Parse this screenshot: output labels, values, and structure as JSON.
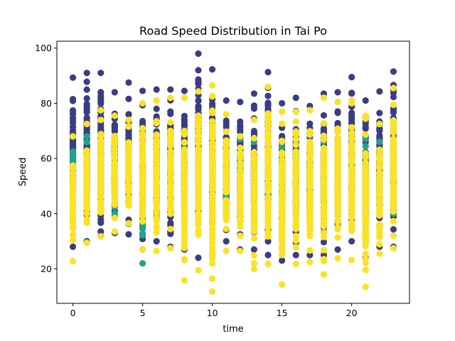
{
  "chart_data": {
    "type": "scatter",
    "title": "Road Speed Distribution in Tai Po",
    "xlabel": "time",
    "ylabel": "Speed",
    "xlim": [
      -1.15,
      24.15
    ],
    "ylim": [
      7.5,
      102.5
    ],
    "x_ticks": [
      0,
      5,
      10,
      15,
      20
    ],
    "y_ticks": [
      20,
      40,
      60,
      80,
      100
    ],
    "grid": false,
    "legend": "none",
    "colors": {
      "indigo": "#3b3d84",
      "teal": "#23a28a",
      "yellow": "#fbe225"
    },
    "series": [
      {
        "color": "#3b3d84",
        "ranges": [
          [
            0,
            28,
            89.3
          ],
          [
            1,
            30,
            91
          ],
          [
            2,
            32,
            91
          ],
          [
            3,
            33,
            84
          ],
          [
            4,
            32.5,
            87.5
          ],
          [
            5,
            27,
            84.5
          ],
          [
            6,
            30,
            85
          ],
          [
            7,
            28,
            85
          ],
          [
            8,
            27,
            84.5
          ],
          [
            9,
            24,
            98
          ],
          [
            10,
            25,
            92.3
          ],
          [
            11,
            30,
            81
          ],
          [
            12,
            27,
            80.5
          ],
          [
            13,
            27,
            83.5
          ],
          [
            14,
            25,
            91.3
          ],
          [
            15,
            23,
            80
          ],
          [
            16,
            25,
            82
          ],
          [
            17,
            25,
            79
          ],
          [
            18,
            25,
            83.5
          ],
          [
            19,
            27,
            84
          ],
          [
            20,
            30,
            89.5
          ],
          [
            21,
            24,
            81
          ],
          [
            22,
            28,
            84.3
          ],
          [
            23,
            28,
            91.5
          ]
        ]
      },
      {
        "color": "#23a28a",
        "ranges": [
          [
            0,
            42,
            68
          ],
          [
            1,
            42,
            68
          ],
          [
            2,
            42,
            69
          ],
          [
            3,
            40,
            67
          ],
          [
            4,
            44,
            71.5
          ],
          [
            5,
            22,
            62
          ],
          [
            6,
            40,
            64
          ],
          [
            7,
            42,
            65
          ],
          [
            8,
            40,
            66
          ],
          [
            9,
            40,
            66
          ],
          [
            10,
            40,
            67
          ],
          [
            11,
            40,
            65
          ],
          [
            12,
            40,
            67
          ],
          [
            13,
            40,
            66
          ],
          [
            14,
            40,
            65
          ],
          [
            15,
            40,
            64
          ],
          [
            16,
            40,
            66
          ],
          [
            17,
            40,
            65
          ],
          [
            18,
            40,
            66
          ],
          [
            19,
            40,
            66
          ],
          [
            20,
            40,
            66
          ],
          [
            21,
            40,
            67
          ],
          [
            22,
            40,
            66
          ],
          [
            23,
            40,
            70
          ]
        ]
      },
      {
        "color": "#fbe225",
        "ranges": [
          [
            0,
            22.8,
            68
          ],
          [
            1,
            29.5,
            72.5
          ],
          [
            2,
            31.8,
            77.5
          ],
          [
            3,
            33.5,
            75.5
          ],
          [
            4,
            36.5,
            74
          ],
          [
            5,
            27,
            80
          ],
          [
            6,
            26.5,
            81
          ],
          [
            7,
            27.5,
            82
          ],
          [
            8,
            15.8,
            82
          ],
          [
            9,
            19.5,
            84.3
          ],
          [
            10,
            11.8,
            86.5
          ],
          [
            11,
            26.5,
            76
          ],
          [
            12,
            26.5,
            68
          ],
          [
            13,
            20,
            74
          ],
          [
            14,
            21.8,
            86
          ],
          [
            15,
            14.3,
            77
          ],
          [
            16,
            21.8,
            77
          ],
          [
            17,
            22.5,
            77.5
          ],
          [
            18,
            18,
            82
          ],
          [
            19,
            23.8,
            80.5
          ],
          [
            20,
            23.2,
            81
          ],
          [
            21,
            13.5,
            75.5
          ],
          [
            22,
            25.5,
            72.5
          ],
          [
            23,
            27.5,
            85.5
          ]
        ]
      }
    ]
  }
}
